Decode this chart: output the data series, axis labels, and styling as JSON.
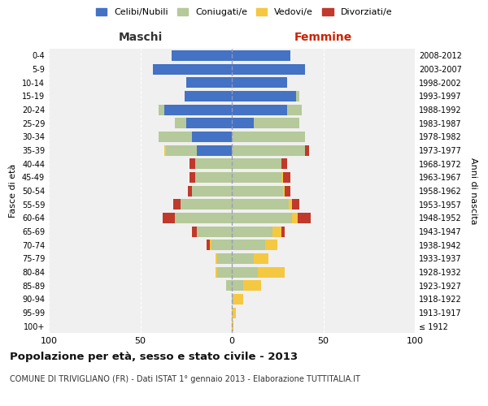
{
  "age_groups": [
    "100+",
    "95-99",
    "90-94",
    "85-89",
    "80-84",
    "75-79",
    "70-74",
    "65-69",
    "60-64",
    "55-59",
    "50-54",
    "45-49",
    "40-44",
    "35-39",
    "30-34",
    "25-29",
    "20-24",
    "15-19",
    "10-14",
    "5-9",
    "0-4"
  ],
  "birth_years": [
    "≤ 1912",
    "1913-1917",
    "1918-1922",
    "1923-1927",
    "1928-1932",
    "1933-1937",
    "1938-1942",
    "1943-1947",
    "1948-1952",
    "1953-1957",
    "1958-1962",
    "1963-1967",
    "1968-1972",
    "1973-1977",
    "1978-1982",
    "1983-1987",
    "1988-1992",
    "1993-1997",
    "1998-2002",
    "2003-2007",
    "2008-2012"
  ],
  "male": {
    "celibe": [
      0,
      0,
      0,
      0,
      0,
      0,
      0,
      0,
      0,
      0,
      0,
      0,
      0,
      19,
      22,
      25,
      37,
      26,
      25,
      43,
      33
    ],
    "coniugato": [
      0,
      0,
      0,
      3,
      8,
      8,
      11,
      19,
      31,
      28,
      22,
      20,
      20,
      17,
      18,
      6,
      3,
      0,
      0,
      0,
      0
    ],
    "vedovo": [
      0,
      0,
      0,
      0,
      1,
      1,
      1,
      0,
      0,
      0,
      0,
      0,
      0,
      1,
      0,
      0,
      0,
      0,
      0,
      0,
      0
    ],
    "divorziato": [
      0,
      0,
      0,
      0,
      0,
      0,
      2,
      3,
      7,
      4,
      2,
      3,
      3,
      0,
      0,
      0,
      0,
      0,
      0,
      0,
      0
    ]
  },
  "female": {
    "nubile": [
      0,
      0,
      0,
      0,
      0,
      0,
      0,
      0,
      0,
      0,
      0,
      0,
      0,
      0,
      0,
      12,
      30,
      35,
      30,
      40,
      32
    ],
    "coniugata": [
      0,
      0,
      1,
      6,
      14,
      12,
      18,
      22,
      33,
      31,
      28,
      27,
      27,
      40,
      40,
      25,
      8,
      2,
      0,
      0,
      0
    ],
    "vedova": [
      1,
      2,
      5,
      10,
      15,
      8,
      7,
      5,
      3,
      2,
      1,
      1,
      0,
      0,
      0,
      0,
      0,
      0,
      0,
      0,
      0
    ],
    "divorziata": [
      0,
      0,
      0,
      0,
      0,
      0,
      0,
      2,
      7,
      4,
      3,
      4,
      3,
      2,
      0,
      0,
      0,
      0,
      0,
      0,
      0
    ]
  },
  "colors": {
    "celibe": "#4472c4",
    "coniugato": "#b5c99a",
    "vedovo": "#f5c842",
    "divorziato": "#c0392b"
  },
  "title": "Popolazione per età, sesso e stato civile - 2013",
  "subtitle": "COMUNE DI TRIVIGLIANO (FR) - Dati ISTAT 1° gennaio 2013 - Elaborazione TUTTITALIA.IT",
  "xlabel_left": "Maschi",
  "xlabel_right": "Femmine",
  "ylabel_left": "Fasce di età",
  "ylabel_right": "Anni di nascita",
  "xlim": 100,
  "background_color": "#ffffff",
  "plot_bg": "#f0f0f0",
  "grid_color": "#cccccc"
}
